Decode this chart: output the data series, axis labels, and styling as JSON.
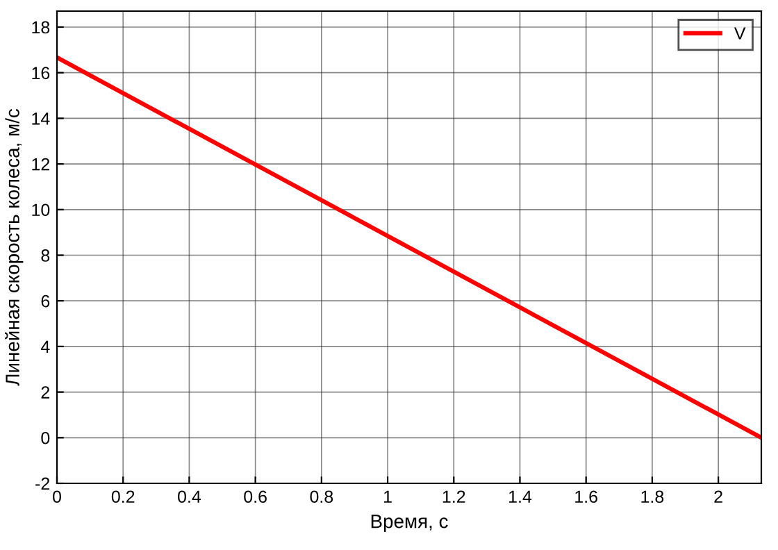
{
  "chart_data": {
    "type": "line",
    "xlabel": "Время, с",
    "ylabel": "Линейная скорость колеса, м/с",
    "x": [
      0,
      2.13
    ],
    "series": [
      {
        "name": "V",
        "color": "#ff0000",
        "values": [
          16.67,
          0
        ]
      }
    ],
    "xlim": [
      0,
      2.13
    ],
    "xticks": [
      0,
      0.2,
      0.4,
      0.6,
      0.8,
      1,
      1.2,
      1.4,
      1.6,
      1.8,
      2
    ],
    "ylim": [
      -2,
      18.7
    ],
    "yticks": [
      -2,
      0,
      2,
      4,
      6,
      8,
      10,
      12,
      14,
      16,
      18
    ],
    "grid": true,
    "legend": "top right",
    "line_style": "solid",
    "marker": "none"
  }
}
